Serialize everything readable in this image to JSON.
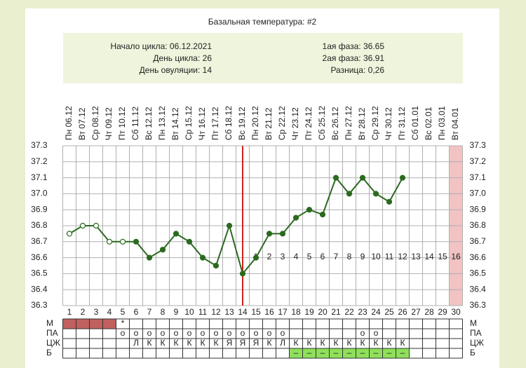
{
  "chart_data": {
    "type": "line",
    "title": "Базальная температура: #2",
    "info_left": [
      "Начало цикла: 06.12.2021",
      "День цикла: 26",
      "День овуляции: 14"
    ],
    "info_right": [
      "1ая фаза: 36.65",
      "2ая фаза: 36.91",
      "Разница: 0,26"
    ],
    "dates": [
      "Пн 06.12",
      "Вт 07.12",
      "Ср 08.12",
      "Чт 09.12",
      "Пт 10.12",
      "Сб 11.12",
      "Вс 12.12",
      "Пн 13.12",
      "Вт 14.12",
      "Ср 15.12",
      "Чт 16.12",
      "Пт 17.12",
      "Сб 18.12",
      "Вс 19.12",
      "Пн 20.12",
      "Вт 21.12",
      "Ср 22.12",
      "Чт 23.12",
      "Пт 24.12",
      "Сб 25.12",
      "Вс 26.12",
      "Пн 27.12",
      "Вт 28.12",
      "Ср 29.12",
      "Чт 30.12",
      "Пт 31.12",
      "Сб 01.01",
      "Вс 02.01",
      "Пн 03.01",
      "Вт 04.01"
    ],
    "categories": [
      1,
      2,
      3,
      4,
      5,
      6,
      7,
      8,
      9,
      10,
      11,
      12,
      13,
      14,
      15,
      16,
      17,
      18,
      19,
      20,
      21,
      22,
      23,
      24,
      25,
      26,
      27,
      28,
      29,
      30
    ],
    "series": [
      {
        "name": "Температура",
        "color": "#2b6a1f",
        "values": [
          36.75,
          36.8,
          36.8,
          36.7,
          36.7,
          36.7,
          36.6,
          36.65,
          36.75,
          36.7,
          36.6,
          36.55,
          36.8,
          36.5,
          36.6,
          36.75,
          36.75,
          36.85,
          36.9,
          36.87,
          37.1,
          37.0,
          37.1,
          37.0,
          36.95,
          37.1,
          null,
          null,
          null,
          null
        ]
      }
    ],
    "open_marker_days": [
      1,
      2,
      3,
      4,
      5
    ],
    "ovulation_day": 14,
    "ovulation_color": "#d42020",
    "phase2_days": [
      1,
      2,
      3,
      4,
      5,
      6,
      7,
      8,
      9,
      10,
      11,
      12,
      13,
      14,
      15,
      16
    ],
    "phase2_color": "#c0605f",
    "shaded_day": 30,
    "shade_color": "#f3c2c2",
    "ylim": [
      36.3,
      37.3
    ],
    "yticks": [
      36.3,
      36.4,
      36.5,
      36.6,
      36.7,
      36.8,
      36.9,
      {
        "value": 37,
        "label": "37.0"
      },
      37.1,
      37.2,
      37.3
    ],
    "grid": true,
    "table": {
      "rows": [
        {
          "label": "М",
          "cells": [
            null,
            null,
            null,
            null,
            "*",
            null,
            null,
            null,
            null,
            null,
            null,
            null,
            null,
            null,
            null,
            null,
            null,
            null,
            null,
            null,
            null,
            null,
            null,
            null,
            null,
            null,
            null,
            null,
            null,
            null
          ],
          "filled_days": [
            1,
            2,
            3,
            4
          ],
          "fill": "#c0605f",
          "text_color": "#e07070"
        },
        {
          "label": "ПА",
          "cells": [
            null,
            null,
            null,
            null,
            "о",
            "о",
            "о",
            "о",
            "о",
            "о",
            "о",
            "о",
            "о",
            "о",
            "о",
            "о",
            "о",
            null,
            null,
            null,
            null,
            null,
            "о",
            "о",
            null,
            null,
            null,
            null,
            null,
            null
          ],
          "filled_days": [],
          "fill": "#ffffff",
          "text_color": "#e07070"
        },
        {
          "label": "ЦЖ",
          "cells": [
            null,
            null,
            null,
            null,
            null,
            "Л",
            "К",
            "К",
            "К",
            "К",
            "К",
            "К",
            "Я",
            "Я",
            "Я",
            "К",
            "Л",
            "К",
            "К",
            "К",
            "К",
            "К",
            "К",
            "К",
            "К",
            "К",
            null,
            null,
            null,
            null
          ],
          "filled_days": [],
          "fill": "#ffffff",
          "text_color": "#333333"
        },
        {
          "label": "Б",
          "cells": [
            null,
            null,
            null,
            null,
            null,
            null,
            null,
            null,
            null,
            null,
            null,
            null,
            null,
            null,
            null,
            null,
            null,
            "–",
            "–",
            "–",
            "–",
            "–",
            "–",
            "–",
            "–",
            "–",
            null,
            null,
            null,
            null
          ],
          "filled_days": [
            18,
            19,
            20,
            21,
            22,
            23,
            24,
            25,
            26
          ],
          "fill": "#8fe05a",
          "text_color": "#2b6a1f"
        }
      ]
    }
  }
}
